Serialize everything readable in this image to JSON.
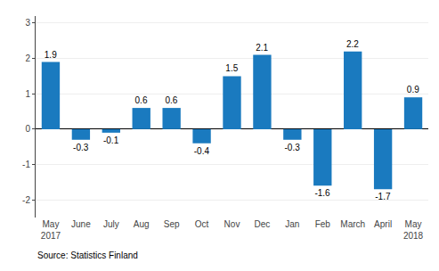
{
  "chart_data": {
    "type": "bar",
    "categories": [
      "May\n2017",
      "June",
      "July",
      "Aug",
      "Sep",
      "Oct",
      "Nov",
      "Dec",
      "Jan",
      "Feb",
      "March",
      "April",
      "May\n2018"
    ],
    "values": [
      1.9,
      -0.3,
      -0.1,
      0.6,
      0.6,
      -0.4,
      1.5,
      2.1,
      -0.3,
      -1.6,
      2.2,
      -1.7,
      0.9
    ],
    "color": "#1a7abf",
    "ylim": [
      -2.5,
      3.2
    ],
    "yticks": [
      -2,
      -1,
      0,
      1,
      2,
      3
    ],
    "grid": true,
    "data_labels": true,
    "annotations": [
      "Source: Statistics Finland"
    ]
  }
}
